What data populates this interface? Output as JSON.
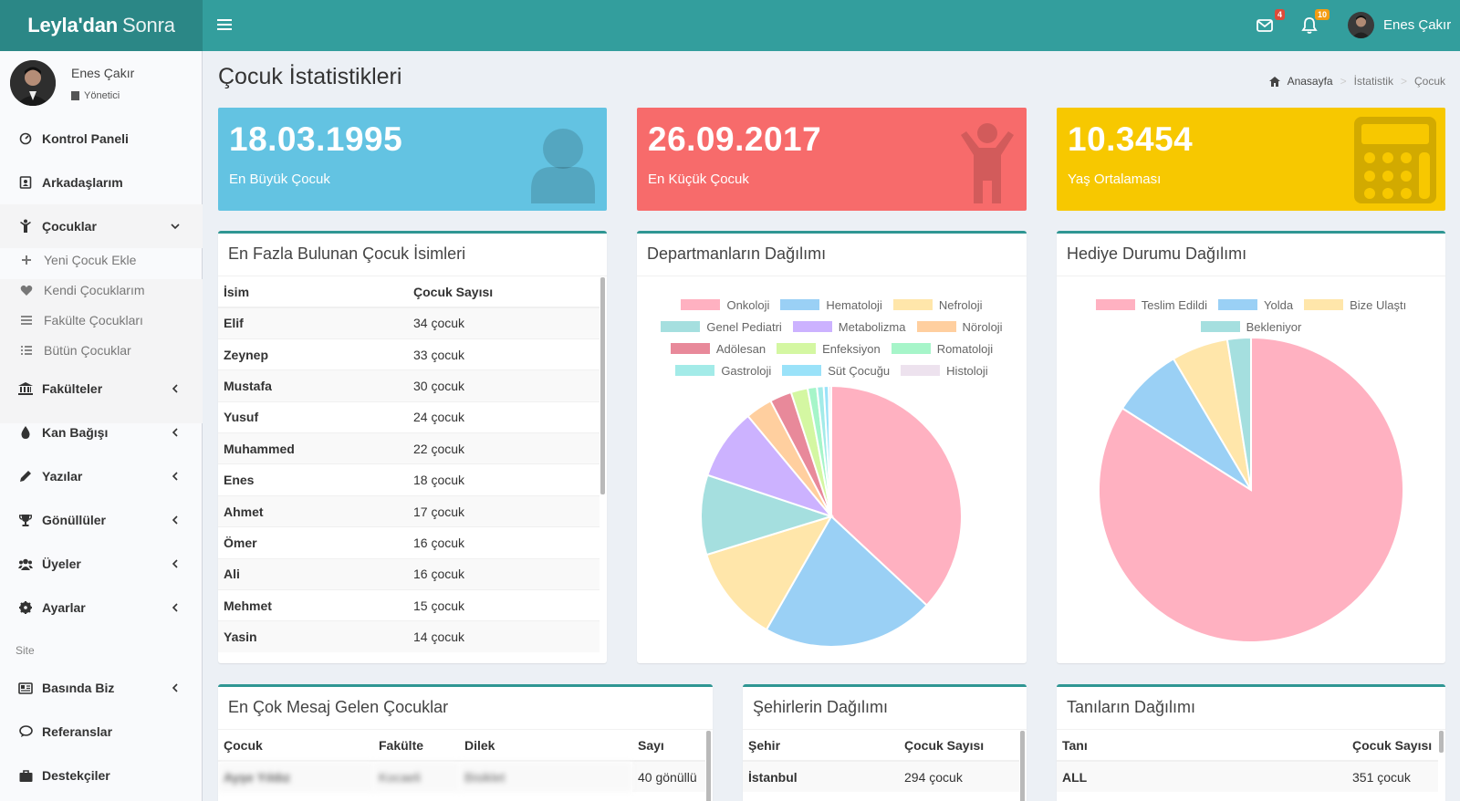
{
  "header": {
    "logo_bold": "Leyla'dan",
    "logo_thin": "Sonra",
    "messages_badge": "4",
    "notifications_badge": "10",
    "user_name": "Enes Çakır"
  },
  "sidebar": {
    "user_name": "Enes Çakır",
    "user_role": "Yönetici",
    "items": [
      {
        "label": "Kontrol Paneli"
      },
      {
        "label": "Arkadaşlarım"
      },
      {
        "label": "Çocuklar"
      },
      {
        "label": "Fakülteler"
      },
      {
        "label": "Kan Bağışı"
      },
      {
        "label": "Yazılar"
      },
      {
        "label": "Gönüllüler"
      },
      {
        "label": "Üyeler"
      },
      {
        "label": "Ayarlar"
      },
      {
        "label": "Basında Biz"
      },
      {
        "label": "Referanslar"
      },
      {
        "label": "Destekçiler"
      }
    ],
    "submenu": [
      {
        "label": "Yeni Çocuk Ekle"
      },
      {
        "label": "Kendi Çocuklarım"
      },
      {
        "label": "Fakülte Çocukları"
      },
      {
        "label": "Bütün Çocuklar"
      }
    ],
    "section_header": "Site"
  },
  "page": {
    "title": "Çocuk İstatistikleri",
    "breadcrumb": [
      "Anasayfa",
      "İstatistik",
      "Çocuk"
    ]
  },
  "info_boxes": [
    {
      "value": "18.03.1995",
      "label": "En Büyük Çocuk",
      "color": "#63c3e2"
    },
    {
      "value": "26.09.2017",
      "label": "En Küçük Çocuk",
      "color": "#f76b6b"
    },
    {
      "value": "10.3454",
      "label": "Yaş Ortalaması",
      "color": "#f7c800"
    }
  ],
  "names_table": {
    "title": "En Fazla Bulunan Çocuk İsimleri",
    "headers": [
      "İsim",
      "Çocuk Sayısı"
    ],
    "rows": [
      [
        "Elif",
        "34 çocuk"
      ],
      [
        "Zeynep",
        "33 çocuk"
      ],
      [
        "Mustafa",
        "30 çocuk"
      ],
      [
        "Yusuf",
        "24 çocuk"
      ],
      [
        "Muhammed",
        "22 çocuk"
      ],
      [
        "Enes",
        "18 çocuk"
      ],
      [
        "Ahmet",
        "17 çocuk"
      ],
      [
        "Ömer",
        "16 çocuk"
      ],
      [
        "Ali",
        "16 çocuk"
      ],
      [
        "Mehmet",
        "15 çocuk"
      ],
      [
        "Yasin",
        "14 çocuk"
      ]
    ]
  },
  "messages_table": {
    "title": "En Çok Mesaj Gelen Çocuklar",
    "headers": [
      "Çocuk",
      "Fakülte",
      "Dilek",
      "Sayı"
    ],
    "rows": [
      [
        "Ayşe Yıldız",
        "Kocaeli",
        "Bisiklet",
        "40 gönüllü"
      ]
    ]
  },
  "cities_table": {
    "title": "Şehirlerin Dağılımı",
    "headers": [
      "Şehir",
      "Çocuk Sayısı"
    ],
    "rows": [
      [
        "İstanbul",
        "294 çocuk"
      ]
    ]
  },
  "diagnoses_table": {
    "title": "Tanıların Dağılımı",
    "headers": [
      "Tanı",
      "Çocuk Sayısı"
    ],
    "rows": [
      [
        "ALL",
        "351 çocuk"
      ]
    ]
  },
  "chart_data": [
    {
      "type": "pie",
      "title": "Departmanların Dağılımı",
      "legend_position": "top",
      "legend_rows": [
        [
          "Onkoloji",
          "Hematoloji",
          "Nefroloji"
        ],
        [
          "Genel Pediatri",
          "Metabolizma",
          "Nöroloji"
        ],
        [
          "Adölesan",
          "Enfeksiyon",
          "Romatoloji"
        ],
        [
          "Gastroloji",
          "Süt Çocuğu",
          "Histoloji"
        ]
      ],
      "labels": [
        "Onkoloji",
        "Hematoloji",
        "Nefroloji",
        "Genel Pediatri",
        "Metabolizma",
        "Nöroloji",
        "Adölesan",
        "Enfeksiyon",
        "Romatoloji",
        "Gastroloji",
        "Süt Çocuğu",
        "Histoloji"
      ],
      "values": [
        35.5,
        20.5,
        11.5,
        9.5,
        8.5,
        3.2,
        2.6,
        2.0,
        1.1,
        0.8,
        0.6,
        0.3
      ],
      "colors": [
        "#ffb1c1",
        "#9ad0f5",
        "#ffe6aa",
        "#a5dfdf",
        "#ccb2ff",
        "#ffcf9f",
        "#e8899a",
        "#d4f7a2",
        "#a6f5c9",
        "#a3ebe8",
        "#9ae2f9",
        "#ede2ee"
      ]
    },
    {
      "type": "pie",
      "title": "Hediye Durumu Dağılımı",
      "legend_position": "top",
      "legend_rows": [
        [
          "Teslim Edildi",
          "Yolda",
          "Bize Ulaştı"
        ],
        [
          "Bekleniyor"
        ]
      ],
      "labels": [
        "Teslim Edildi",
        "Yolda",
        "Bize Ulaştı",
        "Bekleniyor"
      ],
      "values": [
        84,
        7.5,
        6,
        2.5
      ],
      "colors": [
        "#ffb1c1",
        "#9ad0f5",
        "#ffe6aa",
        "#a5dfdf"
      ]
    }
  ]
}
